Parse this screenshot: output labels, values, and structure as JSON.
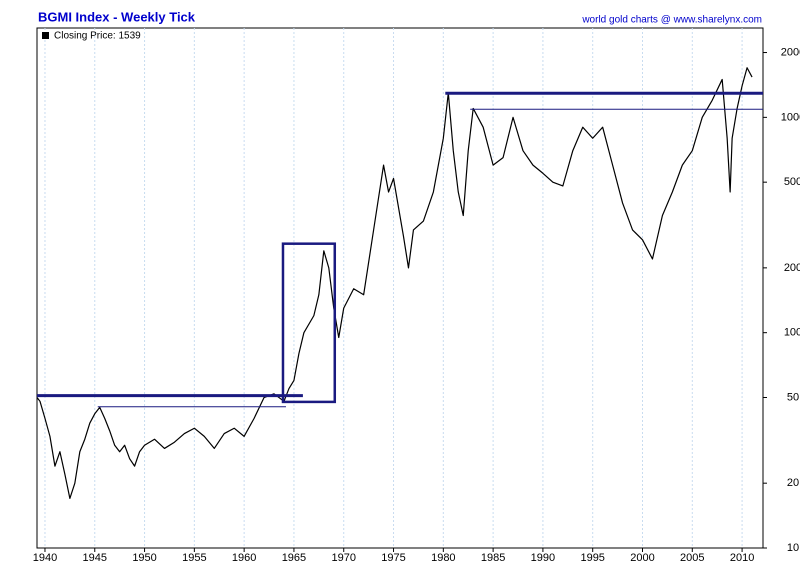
{
  "chart_data": {
    "type": "line",
    "title": "BGMI Index - Weekly Tick",
    "subtitle": "world gold charts @ www.sharelynx.com",
    "log_scale": true,
    "grid": true,
    "legend": "top-left",
    "series": [
      {
        "name": "Closing Price: 1539",
        "color": "#000000",
        "x": [
          1939.2,
          1939.5,
          1940,
          1940.5,
          1941,
          1941.5,
          1942,
          1942.5,
          1943,
          1943.5,
          1944,
          1944.5,
          1945,
          1945.5,
          1946,
          1946.5,
          1947,
          1947.5,
          1948,
          1948.5,
          1949,
          1949.5,
          1950,
          1951,
          1952,
          1953,
          1954,
          1955,
          1956,
          1957,
          1958,
          1959,
          1960,
          1961,
          1962,
          1963,
          1964,
          1964.5,
          1965,
          1965.5,
          1966,
          1967,
          1967.5,
          1968,
          1968.5,
          1969,
          1969.5,
          1970,
          1971,
          1972,
          1973,
          1974,
          1974.5,
          1975,
          1976,
          1976.5,
          1977,
          1978,
          1979,
          1980,
          1980.5,
          1981,
          1981.5,
          1982,
          1982.5,
          1983,
          1984,
          1985,
          1986,
          1987,
          1988,
          1989,
          1990,
          1991,
          1992,
          1993,
          1994,
          1995,
          1996,
          1997,
          1998,
          1999,
          2000,
          2001,
          2002,
          2003,
          2004,
          2005,
          2006,
          2007,
          2008,
          2008.5,
          2008.8,
          2009,
          2009.5,
          2010,
          2010.5,
          2011
        ],
        "values": [
          50,
          48,
          40,
          33,
          24,
          28,
          22,
          17,
          20,
          28,
          32,
          38,
          42,
          45,
          40,
          35,
          30,
          28,
          30,
          26,
          24,
          28,
          30,
          32,
          29,
          31,
          34,
          36,
          33,
          29,
          34,
          36,
          33,
          40,
          50,
          52,
          48,
          55,
          60,
          80,
          100,
          120,
          150,
          240,
          200,
          130,
          95,
          130,
          160,
          150,
          300,
          600,
          450,
          520,
          280,
          200,
          300,
          330,
          450,
          800,
          1300,
          700,
          450,
          350,
          700,
          1100,
          900,
          600,
          650,
          1000,
          700,
          600,
          550,
          500,
          480,
          700,
          900,
          800,
          900,
          600,
          400,
          300,
          270,
          220,
          350,
          450,
          600,
          700,
          1000,
          1200,
          1500,
          800,
          450,
          800,
          1100,
          1400,
          1700,
          1539
        ]
      }
    ],
    "annotations": [
      {
        "type": "hline",
        "color": "#1a1a80",
        "width": 3,
        "y": 51,
        "x": [
          1939.2,
          1965.9
        ]
      },
      {
        "type": "hline",
        "color": "#1a1a80",
        "width": 1,
        "y": 45.3,
        "x": [
          1945.3,
          1964.2
        ]
      },
      {
        "type": "hline",
        "color": "#1a1a80",
        "width": 3,
        "y": 1294,
        "x": [
          1980.2,
          2012.1
        ]
      },
      {
        "type": "hline",
        "color": "#1a1a80",
        "width": 1,
        "y": 1090,
        "x": [
          1982.7,
          2012.1
        ]
      },
      {
        "type": "box",
        "color": "#1a1a80",
        "width": 2.5,
        "x": [
          1963.9,
          1969.1
        ],
        "y": [
          47.7,
          259
        ]
      }
    ],
    "xlim": [
      1939.2,
      2012.1
    ],
    "xticks": [
      1940,
      1945,
      1950,
      1955,
      1960,
      1965,
      1970,
      1975,
      1980,
      1985,
      1990,
      1995,
      2000,
      2005,
      2010
    ],
    "ylim": [
      10,
      2600
    ],
    "yticks": [
      10,
      20,
      50,
      100,
      200,
      500,
      1000,
      2000
    ]
  }
}
